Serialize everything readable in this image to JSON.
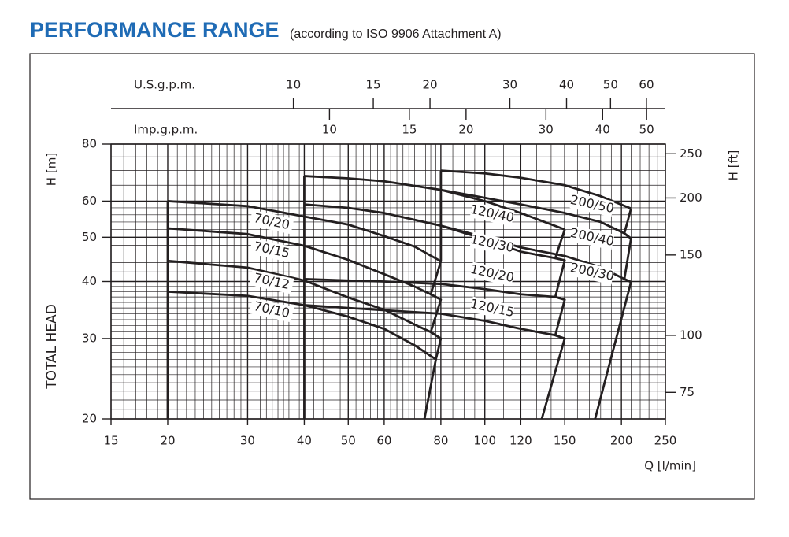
{
  "chart_data": {
    "type": "line",
    "title": "PERFORMANCE RANGE",
    "subtitle": "(according to ISO 9906 Attachment A)",
    "x_label": "Q [l/min]",
    "y_label": "H [m]",
    "y_label_2": "TOTAL HEAD",
    "y2_label": "H [ft]",
    "x2_label": "U.S.g.p.m.",
    "x3_label": "Imp.g.p.m.",
    "x_log": true,
    "y_log": true,
    "grid": true,
    "color": "#231f20",
    "xlim": [
      15,
      250
    ],
    "xticks": [
      15,
      20,
      30,
      40,
      50,
      60,
      80,
      100,
      120,
      150,
      200,
      250
    ],
    "xgrid": [
      16,
      17,
      18,
      19,
      21,
      22,
      23,
      24,
      25,
      26,
      27,
      28,
      29,
      31,
      32,
      33,
      34,
      35,
      36,
      37,
      38,
      39,
      42,
      44,
      46,
      48,
      52,
      54,
      56,
      58,
      62,
      64,
      66,
      68,
      70,
      72,
      74,
      76,
      78,
      85,
      90,
      95,
      110,
      130,
      140,
      160,
      170,
      180,
      190,
      210,
      220,
      230,
      240
    ],
    "ylim": [
      20,
      80
    ],
    "yticks": [
      20,
      30,
      40,
      50,
      60,
      80
    ],
    "ygrid": [
      21,
      22,
      23,
      24,
      25,
      26,
      27,
      28,
      29,
      31,
      32,
      33,
      34,
      35,
      36,
      37,
      38,
      39,
      42,
      44,
      46,
      48,
      52,
      54,
      56,
      58,
      65,
      70,
      75
    ],
    "x2lim": [
      3.963,
      66.05
    ],
    "x2ticks": [
      10,
      15,
      20,
      30,
      40,
      50,
      60
    ],
    "x3lim": [
      3.3,
      55.0
    ],
    "x3ticks": [
      10,
      15,
      20,
      30,
      40,
      50
    ],
    "y2lim": [
      65.6,
      262.5
    ],
    "y2ticks": [
      75,
      100,
      150,
      200,
      250
    ],
    "series": [
      {
        "name": "70/20",
        "x": [
          20,
          30,
          40,
          50,
          60,
          70,
          80
        ],
        "values": [
          60,
          58.5,
          55.5,
          53.3,
          50.3,
          47.7,
          44.3
        ]
      },
      {
        "name": "70/15",
        "x": [
          20,
          30,
          40,
          50,
          60,
          70,
          76,
          80
        ],
        "values": [
          52.3,
          50.8,
          47.9,
          44.6,
          41.5,
          39,
          37.5,
          36.5
        ]
      },
      {
        "name": "70/12",
        "x": [
          20,
          30,
          40,
          50,
          60,
          70,
          76,
          80
        ],
        "values": [
          44.4,
          42.9,
          40.2,
          36.9,
          34.7,
          32.2,
          31,
          30
        ]
      },
      {
        "name": "70/10",
        "x": [
          20,
          30,
          40,
          50,
          60,
          70,
          78
        ],
        "values": [
          38,
          37.2,
          35.5,
          33.5,
          31.5,
          29,
          27
        ]
      },
      {
        "name": "120/40",
        "x": [
          40,
          50,
          60,
          80,
          100,
          120,
          150
        ],
        "values": [
          68.1,
          67.3,
          66.3,
          63.5,
          60,
          56.5,
          52
        ]
      },
      {
        "name": "120/30",
        "x": [
          40,
          50,
          60,
          80,
          100,
          120,
          143,
          150
        ],
        "values": [
          59,
          58,
          56.5,
          53,
          49.5,
          46.5,
          45,
          44.5
        ]
      },
      {
        "name": "120/20",
        "x": [
          40,
          50,
          60,
          80,
          100,
          120,
          143,
          150
        ],
        "values": [
          40.5,
          40.2,
          40,
          39.5,
          38.5,
          37.5,
          37,
          36.5
        ]
      },
      {
        "name": "120/15",
        "x": [
          40,
          50,
          60,
          80,
          100,
          120,
          143,
          150
        ],
        "values": [
          35.5,
          35,
          34.6,
          34,
          32.8,
          31.5,
          30.5,
          30
        ]
      },
      {
        "name": "200/50",
        "x": [
          80,
          100,
          120,
          150,
          180,
          210
        ],
        "values": [
          70,
          69,
          67.5,
          65,
          61.5,
          57.8
        ]
      },
      {
        "name": "200/40",
        "x": [
          80,
          100,
          120,
          150,
          180,
          203,
          210
        ],
        "values": [
          63.5,
          61,
          59,
          56.5,
          54,
          51,
          49.7
        ]
      },
      {
        "name": "200/30",
        "x": [
          80,
          100,
          120,
          150,
          180,
          203,
          210
        ],
        "values": [
          53,
          50,
          47.5,
          45.5,
          43,
          40.5,
          39.9
        ]
      }
    ],
    "boundaries": [
      {
        "x": [
          20,
          20
        ],
        "values": [
          20,
          60
        ]
      },
      {
        "x": [
          40,
          40
        ],
        "values": [
          20,
          68.1
        ]
      },
      {
        "x": [
          80,
          80
        ],
        "values": [
          44.3,
          70
        ]
      },
      {
        "x": [
          80,
          76,
          80,
          76,
          80,
          78,
          73.6
        ],
        "values": [
          44.3,
          37.5,
          36.5,
          31,
          30,
          27,
          20
        ]
      },
      {
        "x": [
          150,
          143,
          150,
          143,
          150,
          143,
          150,
          133.5
        ],
        "values": [
          52,
          45,
          44.5,
          37,
          36.5,
          30.5,
          30,
          20
        ]
      },
      {
        "x": [
          210,
          203,
          210,
          203,
          210,
          175
        ],
        "values": [
          57.8,
          51,
          49.7,
          40.5,
          39.9,
          20
        ]
      }
    ]
  }
}
